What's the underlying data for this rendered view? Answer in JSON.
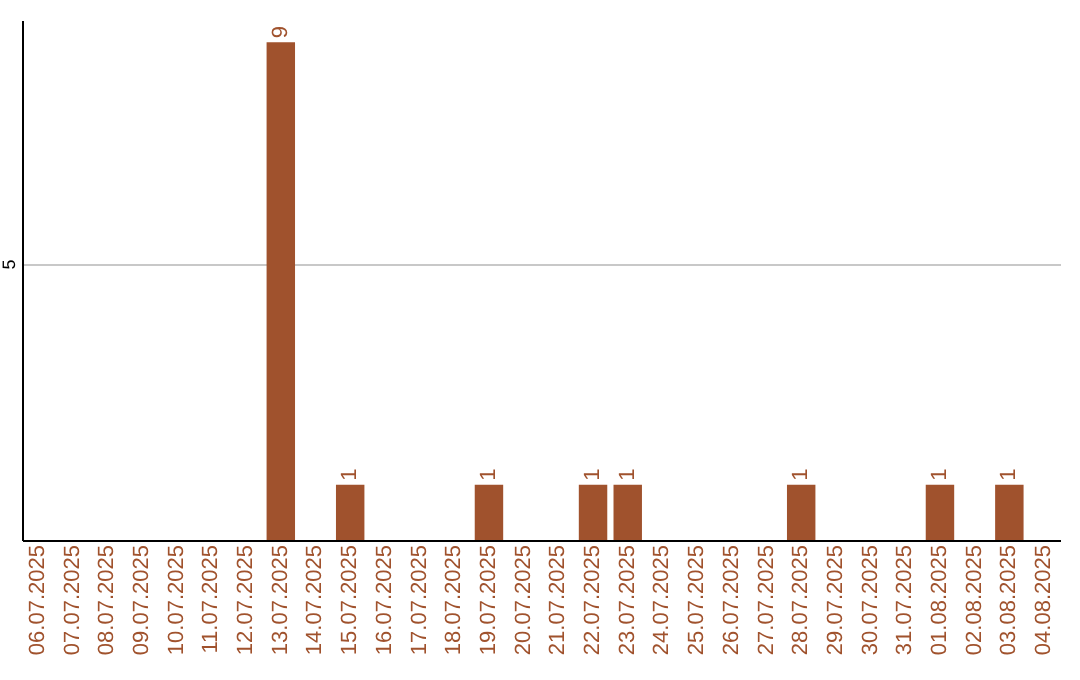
{
  "chart_data": {
    "type": "bar",
    "categories": [
      "06.07.2025",
      "07.07.2025",
      "08.07.2025",
      "09.07.2025",
      "10.07.2025",
      "11.07.2025",
      "12.07.2025",
      "13.07.2025",
      "14.07.2025",
      "15.07.2025",
      "16.07.2025",
      "17.07.2025",
      "18.07.2025",
      "19.07.2025",
      "20.07.2025",
      "21.07.2025",
      "22.07.2025",
      "23.07.2025",
      "24.07.2025",
      "25.07.2025",
      "26.07.2025",
      "27.07.2025",
      "28.07.2025",
      "29.07.2025",
      "30.07.2025",
      "31.07.2025",
      "01.08.2025",
      "02.08.2025",
      "03.08.2025",
      "04.08.2025"
    ],
    "values": [
      0,
      0,
      0,
      0,
      0,
      0,
      0,
      9,
      0,
      1,
      0,
      0,
      0,
      1,
      0,
      0,
      1,
      1,
      0,
      0,
      0,
      0,
      1,
      0,
      0,
      0,
      1,
      0,
      1,
      0
    ],
    "value_labels": [
      null,
      null,
      null,
      null,
      null,
      null,
      null,
      "9",
      null,
      "1",
      null,
      null,
      null,
      "1",
      null,
      null,
      "1",
      "1",
      null,
      null,
      null,
      null,
      "1",
      null,
      null,
      null,
      "1",
      null,
      "1",
      null
    ],
    "color": "#a0522d",
    "ylim": [
      0,
      9.4
    ],
    "yticks": [
      5
    ],
    "grid": "y"
  }
}
